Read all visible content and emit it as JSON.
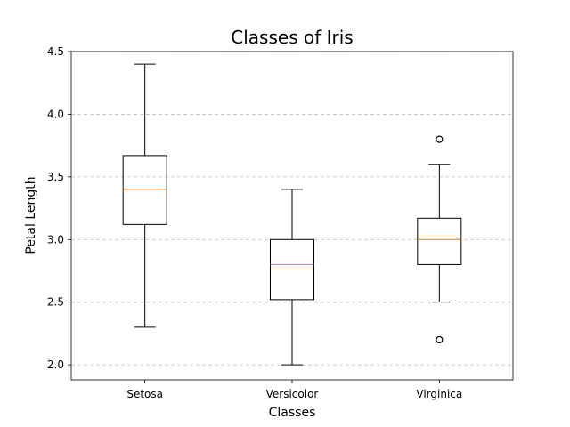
{
  "chart_data": {
    "type": "boxplot",
    "title": "Classes of Iris",
    "xlabel": "Classes",
    "ylabel": "Petal Length",
    "ylim": [
      1.88,
      4.5
    ],
    "yticks": [
      2.0,
      2.5,
      3.0,
      3.5,
      4.0,
      4.5
    ],
    "ytick_labels": [
      "2.0",
      "2.5",
      "3.0",
      "3.5",
      "4.0",
      "4.5"
    ],
    "grid": "y-dashed",
    "categories": [
      "Setosa",
      "Versicolor",
      "Virginica"
    ],
    "boxes": [
      {
        "category": "Setosa",
        "whisker_low": 2.3,
        "q1": 3.12,
        "median": 3.4,
        "q3": 3.67,
        "whisker_high": 4.4,
        "fliers": []
      },
      {
        "category": "Versicolor",
        "whisker_low": 2.0,
        "q1": 2.52,
        "median": 2.8,
        "q3": 3.0,
        "whisker_high": 3.4,
        "fliers": []
      },
      {
        "category": "Virginica",
        "whisker_low": 2.5,
        "q1": 2.8,
        "median": 3.0,
        "q3": 3.17,
        "whisker_high": 3.6,
        "fliers": [
          2.2,
          3.8
        ]
      }
    ],
    "colors": {
      "box": "#000000",
      "median": "#ff7f0e",
      "grid": "#b0b0b0"
    }
  }
}
